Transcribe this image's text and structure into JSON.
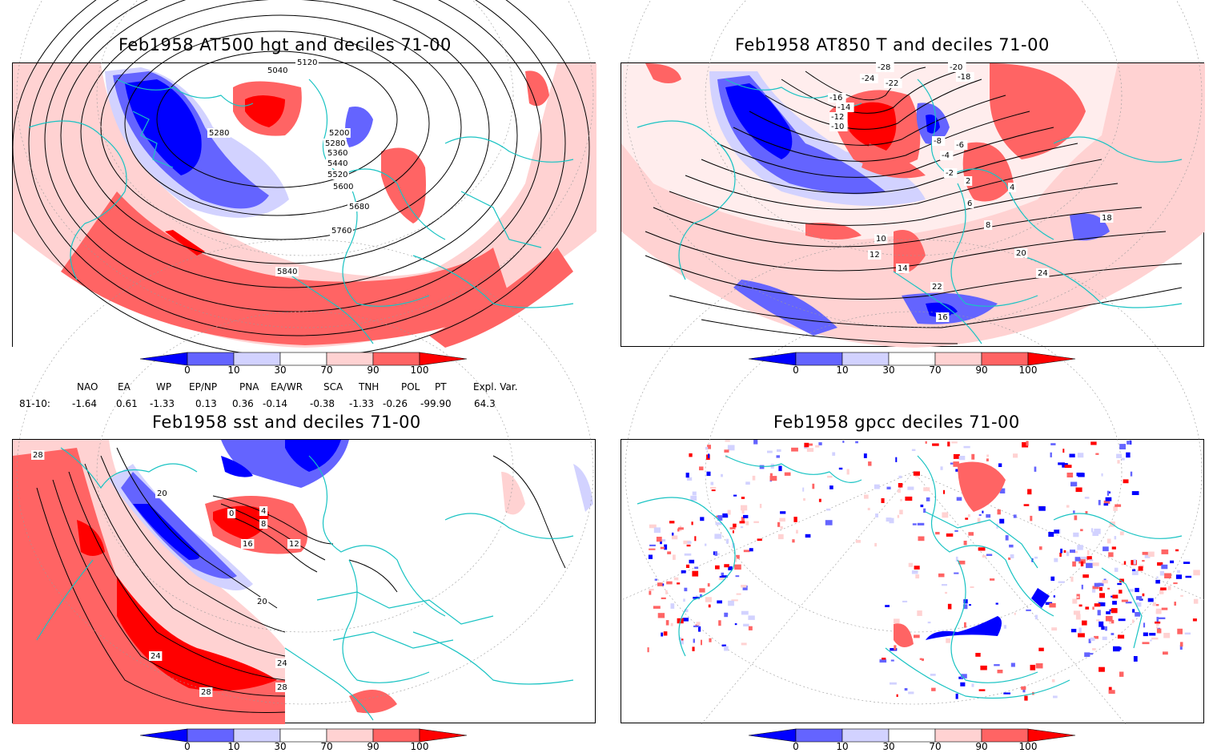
{
  "panels": [
    {
      "title": "Feb1958 AT500 hgt and deciles 71-00",
      "contour_labels": [
        "5040",
        "5120",
        "5200",
        "5280",
        "5280",
        "5360",
        "5440",
        "5520",
        "5600",
        "5680",
        "5760",
        "5840"
      ]
    },
    {
      "title": "Feb1958 AT850 T and deciles 71-00",
      "contour_labels": [
        "-28",
        "-24",
        "-20",
        "-22",
        "-18",
        "-16",
        "-14",
        "-12",
        "-10",
        "-8",
        "-6",
        "-4",
        "-2",
        "2",
        "4",
        "6",
        "8",
        "10",
        "12",
        "14",
        "16",
        "18",
        "20",
        "22",
        "24"
      ]
    },
    {
      "title": "Feb1958 sst and deciles 71-00",
      "contour_labels": [
        "28",
        "20",
        "0",
        "4",
        "8",
        "12",
        "16",
        "20",
        "24",
        "28",
        "24",
        "28"
      ]
    },
    {
      "title": "Feb1958 gpcc deciles 71-00",
      "contour_labels": []
    }
  ],
  "colorbar": {
    "ticks": [
      "0",
      "10",
      "30",
      "70",
      "90",
      "100"
    ],
    "colors": [
      "#0000ff",
      "#6464ff",
      "#d2d2ff",
      "#ffffff",
      "#ffd2d2",
      "#ff6464",
      "#ff0000"
    ]
  },
  "indices": {
    "headers": [
      "NAO",
      "EA",
      "WP",
      "EP/NP",
      "PNA",
      "EA/WR",
      "SCA",
      "TNH",
      "POL",
      "PT",
      "Expl. Var."
    ],
    "row_label": "81-10:",
    "values": [
      "-1.64",
      "0.61",
      "-1.33",
      "0.13",
      "0.36",
      "-0.14",
      "-0.38",
      "-1.33",
      "-0.26",
      "-99.90",
      "64.3"
    ]
  }
}
